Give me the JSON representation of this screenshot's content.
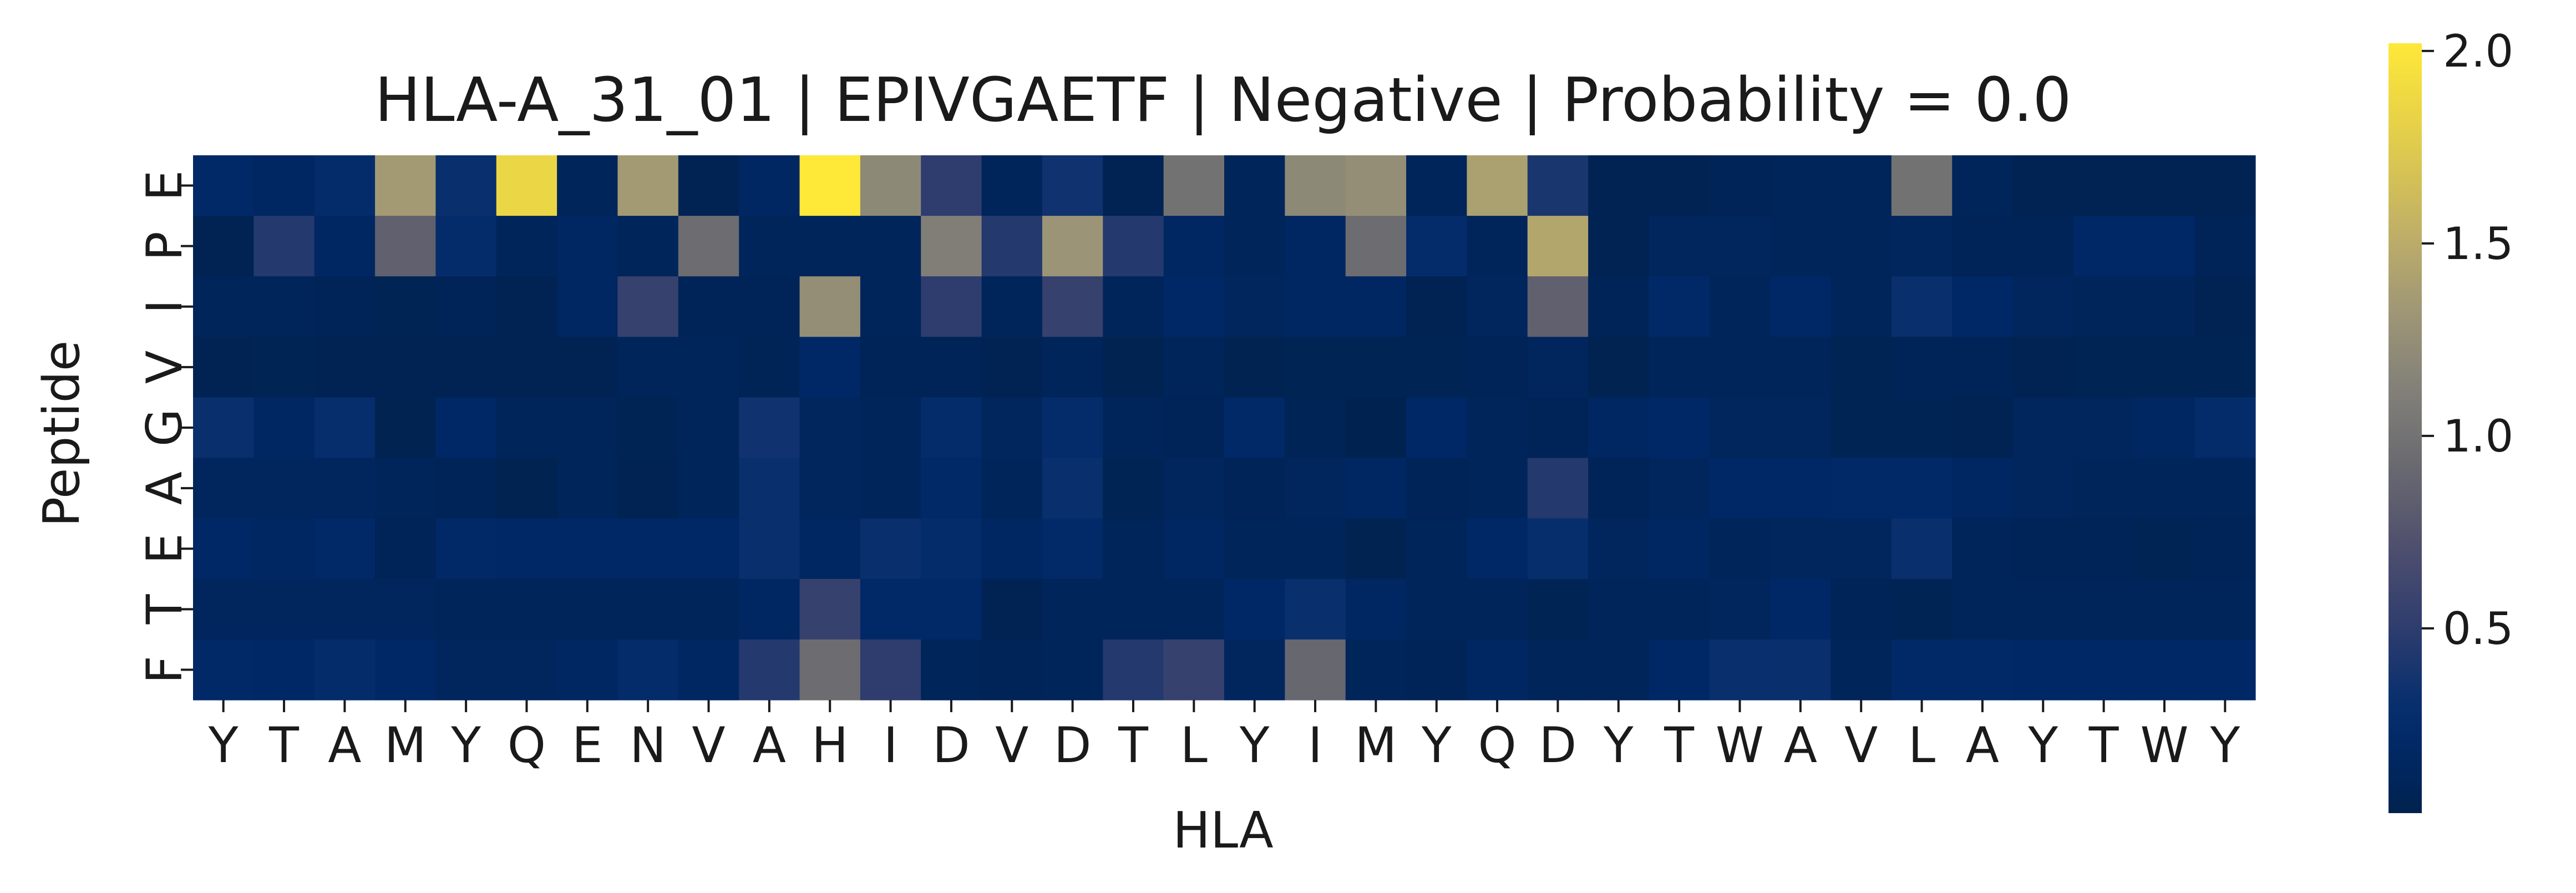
{
  "chart_data": {
    "type": "heatmap",
    "title": "HLA-A_31_01 | EPIVGAETF | Negative | Probability = 0.0",
    "xlabel": "HLA",
    "ylabel": "Peptide",
    "x_categories": [
      "Y",
      "T",
      "A",
      "M",
      "Y",
      "Q",
      "E",
      "N",
      "V",
      "A",
      "H",
      "I",
      "D",
      "V",
      "D",
      "T",
      "L",
      "Y",
      "I",
      "M",
      "Y",
      "Q",
      "D",
      "Y",
      "T",
      "W",
      "A",
      "V",
      "L",
      "A",
      "Y",
      "T",
      "W",
      "Y"
    ],
    "y_categories": [
      "E",
      "P",
      "I",
      "V",
      "G",
      "A",
      "E",
      "T",
      "F"
    ],
    "colormap": "cividis",
    "color_range": [
      0.02,
      2.02
    ],
    "colorbar_ticks": [
      {
        "value": 0.5,
        "label": "0.5"
      },
      {
        "value": 1.0,
        "label": "1.0"
      },
      {
        "value": 1.5,
        "label": "1.5"
      },
      {
        "value": 2.0,
        "label": "2.0"
      }
    ],
    "values": [
      [
        0.2,
        0.15,
        0.25,
        1.35,
        0.3,
        1.85,
        0.1,
        1.35,
        0.05,
        0.15,
        2.02,
        1.2,
        0.5,
        0.1,
        0.35,
        0.05,
        1.0,
        0.1,
        1.2,
        1.25,
        0.1,
        1.4,
        0.4,
        0.05,
        0.05,
        0.08,
        0.1,
        0.1,
        1.0,
        0.1,
        0.05,
        0.05,
        0.05,
        0.05
      ],
      [
        0.05,
        0.45,
        0.15,
        0.85,
        0.25,
        0.1,
        0.15,
        0.1,
        0.95,
        0.1,
        0.1,
        0.1,
        1.1,
        0.45,
        1.3,
        0.45,
        0.15,
        0.1,
        0.15,
        0.95,
        0.25,
        0.1,
        1.45,
        0.05,
        0.12,
        0.12,
        0.1,
        0.1,
        0.12,
        0.08,
        0.08,
        0.18,
        0.18,
        0.08
      ],
      [
        0.1,
        0.1,
        0.08,
        0.06,
        0.08,
        0.05,
        0.15,
        0.55,
        0.08,
        0.08,
        1.25,
        0.1,
        0.5,
        0.1,
        0.55,
        0.1,
        0.18,
        0.12,
        0.15,
        0.15,
        0.05,
        0.12,
        0.85,
        0.08,
        0.2,
        0.1,
        0.18,
        0.1,
        0.3,
        0.18,
        0.12,
        0.1,
        0.1,
        0.05
      ],
      [
        0.05,
        0.06,
        0.05,
        0.05,
        0.05,
        0.05,
        0.05,
        0.1,
        0.1,
        0.07,
        0.18,
        0.08,
        0.08,
        0.05,
        0.1,
        0.04,
        0.1,
        0.04,
        0.06,
        0.06,
        0.06,
        0.08,
        0.12,
        0.04,
        0.1,
        0.1,
        0.1,
        0.06,
        0.08,
        0.08,
        0.05,
        0.06,
        0.06,
        0.06
      ],
      [
        0.3,
        0.15,
        0.28,
        0.04,
        0.18,
        0.1,
        0.1,
        0.06,
        0.1,
        0.35,
        0.12,
        0.1,
        0.25,
        0.12,
        0.25,
        0.1,
        0.08,
        0.2,
        0.07,
        0.03,
        0.18,
        0.1,
        0.08,
        0.15,
        0.18,
        0.12,
        0.12,
        0.06,
        0.06,
        0.05,
        0.12,
        0.12,
        0.15,
        0.25
      ],
      [
        0.12,
        0.12,
        0.12,
        0.1,
        0.08,
        0.04,
        0.1,
        0.05,
        0.1,
        0.3,
        0.12,
        0.1,
        0.2,
        0.1,
        0.3,
        0.06,
        0.12,
        0.08,
        0.12,
        0.15,
        0.08,
        0.1,
        0.45,
        0.08,
        0.12,
        0.18,
        0.18,
        0.2,
        0.2,
        0.15,
        0.12,
        0.1,
        0.1,
        0.1
      ],
      [
        0.18,
        0.15,
        0.2,
        0.08,
        0.2,
        0.18,
        0.18,
        0.18,
        0.18,
        0.3,
        0.15,
        0.3,
        0.25,
        0.15,
        0.22,
        0.1,
        0.15,
        0.1,
        0.1,
        0.04,
        0.1,
        0.18,
        0.28,
        0.12,
        0.15,
        0.1,
        0.12,
        0.12,
        0.3,
        0.1,
        0.08,
        0.08,
        0.06,
        0.08
      ],
      [
        0.12,
        0.12,
        0.12,
        0.12,
        0.1,
        0.1,
        0.1,
        0.1,
        0.1,
        0.15,
        0.55,
        0.2,
        0.2,
        0.05,
        0.1,
        0.1,
        0.1,
        0.18,
        0.3,
        0.15,
        0.1,
        0.1,
        0.06,
        0.1,
        0.1,
        0.12,
        0.18,
        0.08,
        0.06,
        0.1,
        0.1,
        0.1,
        0.1,
        0.1
      ],
      [
        0.2,
        0.18,
        0.25,
        0.18,
        0.12,
        0.12,
        0.15,
        0.25,
        0.15,
        0.45,
        0.95,
        0.5,
        0.1,
        0.08,
        0.1,
        0.45,
        0.55,
        0.12,
        0.9,
        0.1,
        0.08,
        0.15,
        0.1,
        0.1,
        0.18,
        0.3,
        0.3,
        0.1,
        0.2,
        0.2,
        0.18,
        0.18,
        0.18,
        0.18
      ]
    ]
  }
}
